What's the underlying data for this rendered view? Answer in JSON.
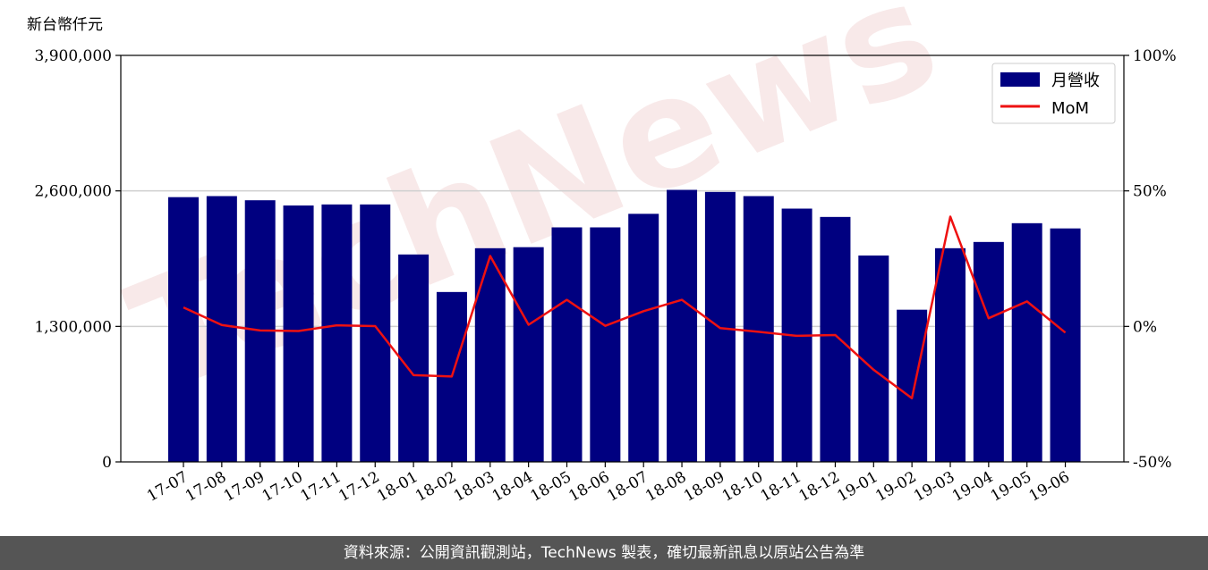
{
  "chart_data": {
    "type": "bar+line",
    "y_unit_label": "新台幣仟元",
    "categories": [
      "17-07",
      "17-08",
      "17-09",
      "17-10",
      "17-11",
      "17-12",
      "18-01",
      "18-02",
      "18-03",
      "18-04",
      "18-05",
      "18-06",
      "18-07",
      "18-08",
      "18-09",
      "18-10",
      "18-11",
      "18-12",
      "19-01",
      "19-02",
      "19-03",
      "19-04",
      "19-05",
      "19-06"
    ],
    "series": [
      {
        "name": "月營收",
        "type": "bar",
        "axis": "left",
        "color": "#000080",
        "values": [
          2540000,
          2550000,
          2510000,
          2460000,
          2470000,
          2470000,
          1990000,
          1630000,
          2050000,
          2060000,
          2250000,
          2250000,
          2380000,
          2610000,
          2590000,
          2550000,
          2430000,
          2350000,
          1980000,
          1460000,
          2050000,
          2110000,
          2290000,
          2240000
        ]
      },
      {
        "name": "MoM",
        "type": "line",
        "axis": "right",
        "color": "#ee1111",
        "values": [
          7,
          0.5,
          -1.5,
          -1.7,
          0.4,
          0.1,
          -18,
          -18.5,
          26,
          0.6,
          9.8,
          0.2,
          5.6,
          9.8,
          -0.6,
          -2,
          -3.5,
          -3.2,
          -16,
          -26.5,
          40.5,
          3,
          9.2,
          -2.3
        ]
      }
    ],
    "left_axis": {
      "ylim": [
        0,
        3900000
      ],
      "ticks": [
        "0",
        "1,300,000",
        "2,600,000",
        "3,900,000"
      ]
    },
    "right_axis": {
      "ylim": [
        -50,
        100
      ],
      "ticks": [
        "-50%",
        "0%",
        "50%",
        "100%"
      ]
    },
    "grid": "horizontal",
    "legend_position": "top-right"
  },
  "watermark": "TechNews",
  "footer": {
    "source_text": "資料來源：公開資訊觀測站，TechNews 製表，確切最新訊息以原站公告為準"
  }
}
